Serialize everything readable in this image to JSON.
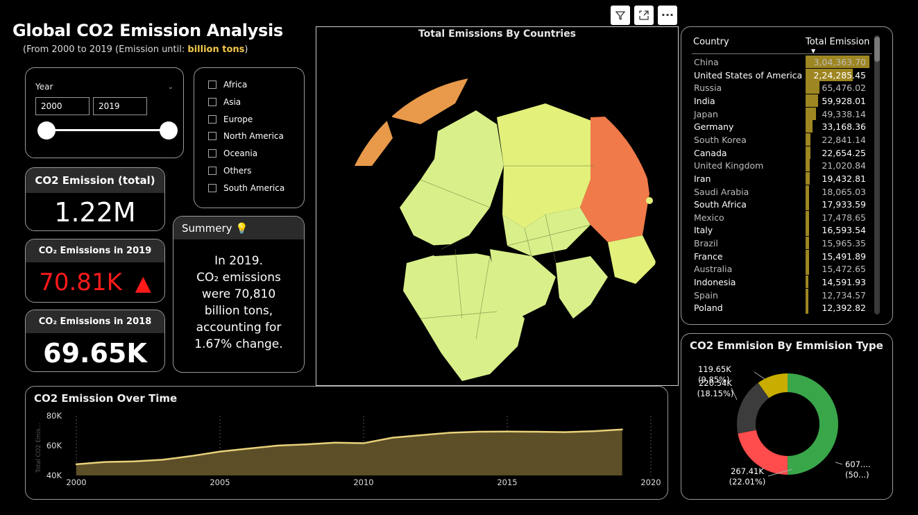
{
  "header": {
    "title": "Global CO2 Emission Analysis",
    "subtitle_prefix": "(From 2000 to 2019 (Emission until: ",
    "subtitle_highlight": "billion tons",
    "subtitle_suffix": ")"
  },
  "toolbar": {
    "icons": [
      "filter-icon",
      "focus-mode-icon",
      "more-options-icon"
    ],
    "more_label": "···"
  },
  "year_slicer": {
    "label": "Year",
    "from": "2000",
    "to": "2019",
    "range_fraction": [
      0,
      1
    ]
  },
  "region_slicer": {
    "items": [
      "Africa",
      "Asia",
      "Europe",
      "North America",
      "Oceania",
      "Others",
      "South America"
    ]
  },
  "kpis": {
    "total": {
      "label": "CO2 Emission (total)",
      "value": "1.22M"
    },
    "y2019": {
      "label": "CO₂ Emissions in 2019",
      "value": "70.81K",
      "indicator": "▲",
      "color": "#ff1a1a"
    },
    "y2018": {
      "label": "CO₂ Emissions in 2018",
      "value": "69.65K"
    }
  },
  "summary": {
    "title": "Summery",
    "icon": "lightbulb-icon",
    "lines": [
      "In 2019.",
      "CO₂ emissions",
      "were 70,810",
      "billion tons,",
      "accounting for",
      "1.67% change."
    ]
  },
  "map": {
    "title": "Total Emissions By Countries",
    "colors": {
      "high": "#f07a4a",
      "mid": "#e89a4a",
      "low": "#d7f08a",
      "mid_low": "#e3f07a"
    }
  },
  "country_table": {
    "headers": {
      "country": "Country",
      "total": "Total Emission"
    },
    "bar_color": "#9e8622",
    "rows": [
      {
        "country": "China",
        "value": "3,04,363.70",
        "num": 304363.7
      },
      {
        "country": "United States of America",
        "value": "2,24,285.45",
        "num": 224285.45
      },
      {
        "country": "Russia",
        "value": "65,476.02",
        "num": 65476.02
      },
      {
        "country": "India",
        "value": "59,928.01",
        "num": 59928.01
      },
      {
        "country": "Japan",
        "value": "49,338.14",
        "num": 49338.14
      },
      {
        "country": "Germany",
        "value": "33,168.36",
        "num": 33168.36
      },
      {
        "country": "South Korea",
        "value": "22,841.14",
        "num": 22841.14
      },
      {
        "country": "Canada",
        "value": "22,654.25",
        "num": 22654.25
      },
      {
        "country": "United Kingdom",
        "value": "21,020.84",
        "num": 21020.84
      },
      {
        "country": "Iran",
        "value": "19,432.81",
        "num": 19432.81
      },
      {
        "country": "Saudi Arabia",
        "value": "18,065.03",
        "num": 18065.03
      },
      {
        "country": "South Africa",
        "value": "17,933.59",
        "num": 17933.59
      },
      {
        "country": "Mexico",
        "value": "17,478.65",
        "num": 17478.65
      },
      {
        "country": "Italy",
        "value": "16,593.54",
        "num": 16593.54
      },
      {
        "country": "Brazil",
        "value": "15,965.35",
        "num": 15965.35
      },
      {
        "country": "France",
        "value": "15,491.89",
        "num": 15491.89
      },
      {
        "country": "Australia",
        "value": "15,472.65",
        "num": 15472.65
      },
      {
        "country": "Indonesia",
        "value": "14,591.93",
        "num": 14591.93
      },
      {
        "country": "Spain",
        "value": "12,734.57",
        "num": 12734.57
      },
      {
        "country": "Poland",
        "value": "12,392.82",
        "num": 12392.82
      }
    ]
  },
  "chart_data": [
    {
      "type": "area",
      "title": "CO2 Emission Over Time",
      "ylabel": "Total CO2 Emis...",
      "xlabel": "",
      "x": [
        2000,
        2001,
        2002,
        2003,
        2004,
        2005,
        2006,
        2007,
        2008,
        2009,
        2010,
        2011,
        2012,
        2013,
        2014,
        2015,
        2016,
        2017,
        2018,
        2019
      ],
      "values": [
        47.5,
        49.0,
        49.4,
        50.5,
        53.0,
        56.0,
        58.0,
        60.0,
        60.8,
        62.0,
        61.6,
        65.3,
        67.0,
        68.6,
        69.3,
        69.4,
        69.3,
        69.0,
        69.65,
        70.81
      ],
      "xticks": [
        "2000",
        "2005",
        "2010",
        "2015",
        "2020"
      ],
      "yticks": [
        "80K",
        "60K",
        "40K"
      ],
      "xlim": [
        2000,
        2020
      ],
      "ylim": [
        40,
        80
      ],
      "line_color": "#e8d17a",
      "fill_color": "#5c4f28"
    },
    {
      "type": "pie",
      "title": "CO2 Emmision By Emmision Type",
      "slices": [
        {
          "label": "607.... (50...)",
          "value": 607,
          "color": "#3aa64a"
        },
        {
          "label": "267.41K (22.01%)",
          "value": 267.41,
          "color": "#ff4c4c"
        },
        {
          "label": "220.54K (18.15%)",
          "value": 220.54,
          "color": "#3c3c3c"
        },
        {
          "label": "119.65K (9.85%)",
          "value": 119.65,
          "color": "#c9ad00"
        }
      ]
    }
  ]
}
